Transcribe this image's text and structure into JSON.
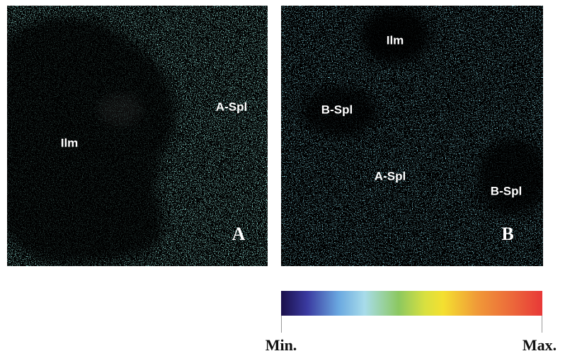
{
  "panels": [
    {
      "letter": "A",
      "labels": [
        "Ilm",
        "A-Spl"
      ]
    },
    {
      "letter": "B",
      "labels": [
        "Ilm",
        "B-Spl",
        "A-Spl",
        "B-Spl"
      ]
    }
  ],
  "colorbar": {
    "min_label": "Min.",
    "max_label": "Max."
  }
}
